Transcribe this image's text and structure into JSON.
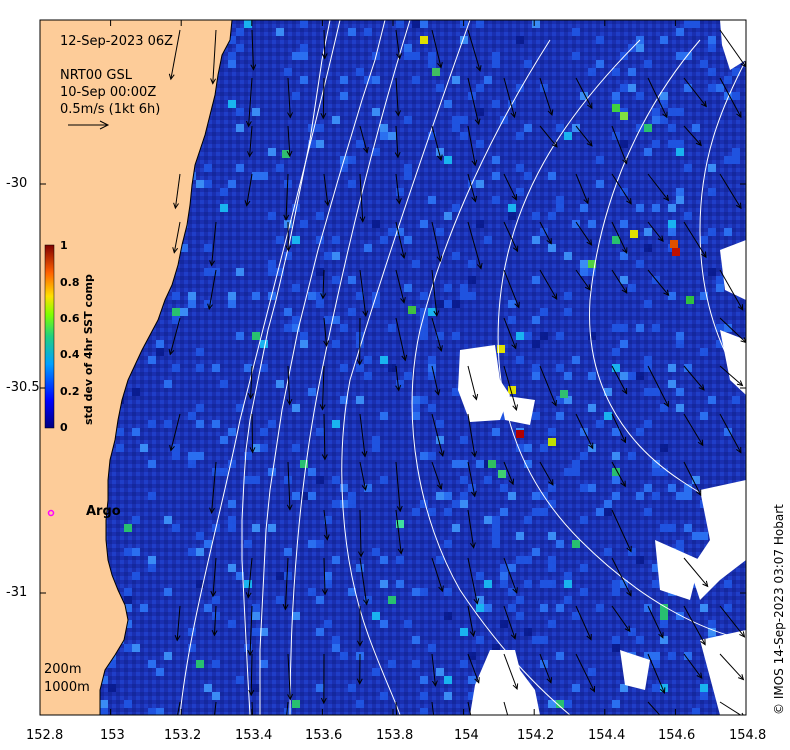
{
  "map": {
    "datetime": "12-Sep-2023 06Z",
    "product_line1": "NRT00 GSL",
    "product_line2": "10-Sep 00:00Z",
    "scale_label": "0.5m/s (1kt 6h)",
    "argo_label": "Argo",
    "isobath_200": "200m",
    "isobath_1000": "1000m",
    "credit": "© IMOS 14-Sep-2023 03:07 Hobart",
    "x_ticks": [
      "152.8",
      "153",
      "153.2",
      "153.4",
      "153.6",
      "153.8",
      "154",
      "154.2",
      "154.4",
      "154.6",
      "154.8"
    ],
    "y_ticks": [
      "-30",
      "-30.5",
      "-31"
    ],
    "colorbar": {
      "title": "std dev of 4hr SST comp",
      "ticks": [
        "1",
        "0.8",
        "0.6",
        "0.4",
        "0.2",
        "0"
      ]
    },
    "colors": {
      "land": "#fdcc99",
      "ocean_base": "#1a2fb0",
      "cloud_gap": "#ffffff",
      "contour": "#ffffff",
      "argo_marker": "#ff00ff"
    }
  }
}
